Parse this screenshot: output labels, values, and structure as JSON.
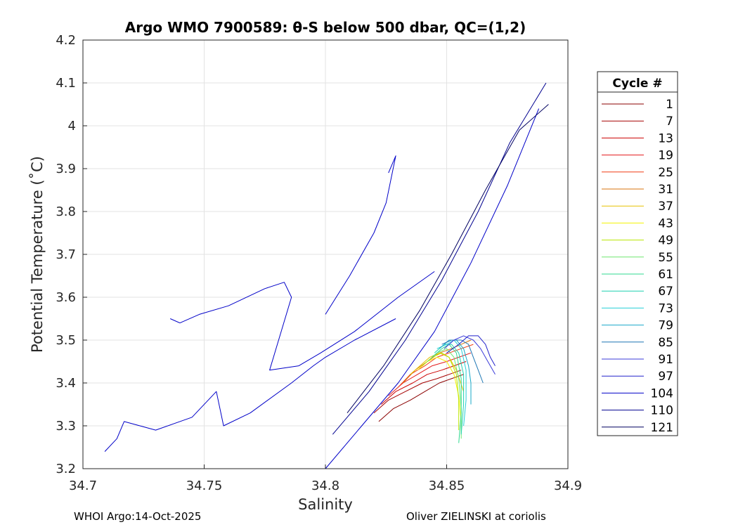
{
  "chart_data": {
    "type": "line",
    "title": "Argo WMO 7900589: θ-S below 500 dbar,  QC=(1,2)",
    "xlabel": "Salinity",
    "ylabel": "Potential Temperature (˚C)",
    "xlim": [
      34.7,
      34.9
    ],
    "ylim": [
      3.2,
      4.2
    ],
    "xticks": [
      "34.7",
      "34.75",
      "34.8",
      "34.85",
      "34.9"
    ],
    "yticks": [
      "3.2",
      "3.3",
      "3.4",
      "3.5",
      "3.6",
      "3.7",
      "3.8",
      "3.9",
      "4",
      "4.1",
      "4.2"
    ],
    "grid": true,
    "legend_title": "Cycle #",
    "legend_position": "outside-right",
    "series": [
      {
        "name": "1",
        "color": "#8b0000",
        "x": [
          34.822,
          34.828,
          34.835,
          34.841,
          34.847,
          34.852,
          34.857
        ],
        "y": [
          3.31,
          3.34,
          3.36,
          3.38,
          3.4,
          3.41,
          3.42
        ]
      },
      {
        "name": "7",
        "color": "#a50000",
        "x": [
          34.82,
          34.826,
          34.833,
          34.84,
          34.846,
          34.851,
          34.856
        ],
        "y": [
          3.33,
          3.36,
          3.38,
          3.4,
          3.41,
          3.42,
          3.43
        ]
      },
      {
        "name": "13",
        "color": "#cc0000",
        "x": [
          34.823,
          34.829,
          34.836,
          34.842,
          34.848,
          34.853,
          34.858
        ],
        "y": [
          3.35,
          3.38,
          3.4,
          3.42,
          3.43,
          3.44,
          3.45
        ]
      },
      {
        "name": "19",
        "color": "#e31a1c",
        "x": [
          34.826,
          34.832,
          34.838,
          34.844,
          34.85,
          34.855,
          34.86
        ],
        "y": [
          3.37,
          3.4,
          3.42,
          3.44,
          3.45,
          3.46,
          3.47
        ]
      },
      {
        "name": "25",
        "color": "#f03c14",
        "x": [
          34.83,
          34.835,
          34.841,
          34.846,
          34.851,
          34.856,
          34.861
        ],
        "y": [
          3.39,
          3.42,
          3.44,
          3.46,
          3.47,
          3.48,
          3.49
        ]
      },
      {
        "name": "31",
        "color": "#d9730d",
        "x": [
          34.832,
          34.837,
          34.842,
          34.847,
          34.852,
          34.856,
          34.86
        ],
        "y": [
          3.4,
          3.43,
          3.45,
          3.47,
          3.48,
          3.49,
          3.5
        ]
      },
      {
        "name": "37",
        "color": "#e6c000",
        "x": [
          34.835,
          34.839,
          34.843,
          34.847,
          34.851,
          34.854,
          34.857
        ],
        "y": [
          3.42,
          3.44,
          3.46,
          3.47,
          3.46,
          3.43,
          3.38
        ]
      },
      {
        "name": "43",
        "color": "#f2f200",
        "x": [
          34.838,
          34.842,
          34.846,
          34.85,
          34.853,
          34.855,
          34.856
        ],
        "y": [
          3.43,
          3.45,
          3.46,
          3.45,
          3.42,
          3.37,
          3.31
        ]
      },
      {
        "name": "49",
        "color": "#b8e600",
        "x": [
          34.84,
          34.844,
          34.848,
          34.851,
          34.854,
          34.855,
          34.855
        ],
        "y": [
          3.44,
          3.46,
          3.47,
          3.46,
          3.42,
          3.36,
          3.29
        ]
      },
      {
        "name": "55",
        "color": "#6ee66e",
        "x": [
          34.842,
          34.846,
          34.85,
          34.853,
          34.855,
          34.856,
          34.856
        ],
        "y": [
          3.45,
          3.47,
          3.48,
          3.46,
          3.41,
          3.34,
          3.27
        ]
      },
      {
        "name": "61",
        "color": "#2fd98f",
        "x": [
          34.844,
          34.848,
          34.851,
          34.854,
          34.856,
          34.856,
          34.855
        ],
        "y": [
          3.46,
          3.48,
          3.49,
          3.47,
          3.41,
          3.33,
          3.26
        ]
      },
      {
        "name": "67",
        "color": "#1fd1b0",
        "x": [
          34.845,
          34.849,
          34.852,
          34.855,
          34.857,
          34.857,
          34.856
        ],
        "y": [
          3.47,
          3.49,
          3.49,
          3.47,
          3.42,
          3.35,
          3.28
        ]
      },
      {
        "name": "73",
        "color": "#25cfd6",
        "x": [
          34.846,
          34.85,
          34.853,
          34.856,
          34.858,
          34.858,
          34.857
        ],
        "y": [
          3.48,
          3.49,
          3.5,
          3.48,
          3.43,
          3.36,
          3.3
        ]
      },
      {
        "name": "79",
        "color": "#1aa8c9",
        "x": [
          34.847,
          34.851,
          34.854,
          34.857,
          34.859,
          34.86,
          34.86
        ],
        "y": [
          3.48,
          3.5,
          3.5,
          3.48,
          3.44,
          3.4,
          3.35
        ]
      },
      {
        "name": "85",
        "color": "#1f77b4",
        "x": [
          34.848,
          34.852,
          34.856,
          34.859,
          34.861,
          34.863,
          34.865
        ],
        "y": [
          3.49,
          3.5,
          3.5,
          3.49,
          3.46,
          3.43,
          3.4
        ]
      },
      {
        "name": "91",
        "color": "#3b3bd9",
        "x": [
          34.849,
          34.853,
          34.857,
          34.861,
          34.864,
          34.867,
          34.87
        ],
        "y": [
          3.48,
          3.5,
          3.51,
          3.5,
          3.48,
          3.45,
          3.42
        ]
      },
      {
        "name": "97",
        "color": "#2222cc",
        "x": [
          34.85,
          34.855,
          34.859,
          34.863,
          34.866,
          34.868,
          34.87
        ],
        "y": [
          3.47,
          3.49,
          3.51,
          3.51,
          3.49,
          3.46,
          3.44
        ]
      },
      {
        "name": "104",
        "color": "#0000c8",
        "x": [
          34.8,
          34.815,
          34.83,
          34.845,
          34.86,
          34.875,
          34.888
        ],
        "y": [
          3.2,
          3.3,
          3.4,
          3.52,
          3.68,
          3.86,
          4.04
        ]
      },
      {
        "name": "110",
        "color": "#00008f",
        "x": [
          34.803,
          34.818,
          34.833,
          34.848,
          34.863,
          34.876,
          34.891
        ],
        "y": [
          3.28,
          3.38,
          3.5,
          3.64,
          3.8,
          3.96,
          4.1
        ]
      },
      {
        "name": "121",
        "color": "#000060",
        "x": [
          34.809,
          34.824,
          34.839,
          34.852,
          34.866,
          34.88,
          34.892
        ],
        "y": [
          3.33,
          3.44,
          3.57,
          3.7,
          3.85,
          3.99,
          4.05
        ]
      },
      {
        "name": "",
        "color": "#0000c8",
        "x": [
          34.709,
          34.714,
          34.717,
          34.73,
          34.745,
          34.755,
          34.758,
          34.769,
          34.786,
          34.795,
          34.8,
          34.812,
          34.829
        ],
        "y": [
          3.24,
          3.27,
          3.31,
          3.29,
          3.32,
          3.38,
          3.3,
          3.33,
          3.4,
          3.44,
          3.46,
          3.5,
          3.55
        ]
      },
      {
        "name": "",
        "color": "#0000c8",
        "x": [
          34.736,
          34.74,
          34.748,
          34.76,
          34.775,
          34.783,
          34.786,
          34.777,
          34.789,
          34.798,
          34.812,
          34.83,
          34.845
        ],
        "y": [
          3.55,
          3.54,
          3.56,
          3.58,
          3.62,
          3.635,
          3.6,
          3.43,
          3.44,
          3.47,
          3.52,
          3.6,
          3.66
        ]
      },
      {
        "name": "",
        "color": "#0000c8",
        "x": [
          34.8,
          34.81,
          34.82,
          34.825,
          34.829,
          34.826
        ],
        "y": [
          3.56,
          3.65,
          3.75,
          3.82,
          3.93,
          3.89
        ]
      }
    ]
  },
  "footer": {
    "left": "WHOI Argo:14-Oct-2025",
    "right": "Oliver ZIELINSKI at coriolis"
  }
}
